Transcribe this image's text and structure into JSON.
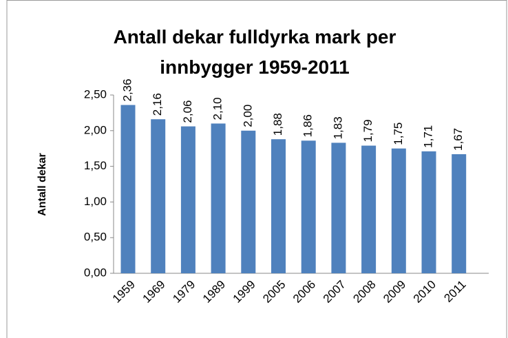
{
  "chart_data": {
    "type": "bar",
    "title": "Antall dekar fulldyrka mark per innbygger 1959-2011",
    "y_label": "Antall dekar",
    "categories": [
      "1959",
      "1969",
      "1979",
      "1989",
      "1999",
      "2005",
      "2006",
      "2007",
      "2008",
      "2009",
      "2010",
      "2011"
    ],
    "values": [
      2.36,
      2.16,
      2.06,
      2.1,
      2.0,
      1.88,
      1.86,
      1.83,
      1.79,
      1.75,
      1.71,
      1.67
    ],
    "value_labels": [
      "2,36",
      "2,16",
      "2,06",
      "2,10",
      "2,00",
      "1,88",
      "1,86",
      "1,83",
      "1,79",
      "1,75",
      "1,71",
      "1,67"
    ],
    "color": "#4f81bd",
    "ylim": [
      0,
      2.5
    ],
    "yticks": [
      {
        "value": 0,
        "label": "0,00"
      },
      {
        "value": 0.5,
        "label": "0,50"
      },
      {
        "value": 1,
        "label": "1,00"
      },
      {
        "value": 1.5,
        "label": "1,50"
      },
      {
        "value": 2,
        "label": "2,00"
      },
      {
        "value": 2.5,
        "label": "2,50"
      }
    ],
    "grid": false
  }
}
